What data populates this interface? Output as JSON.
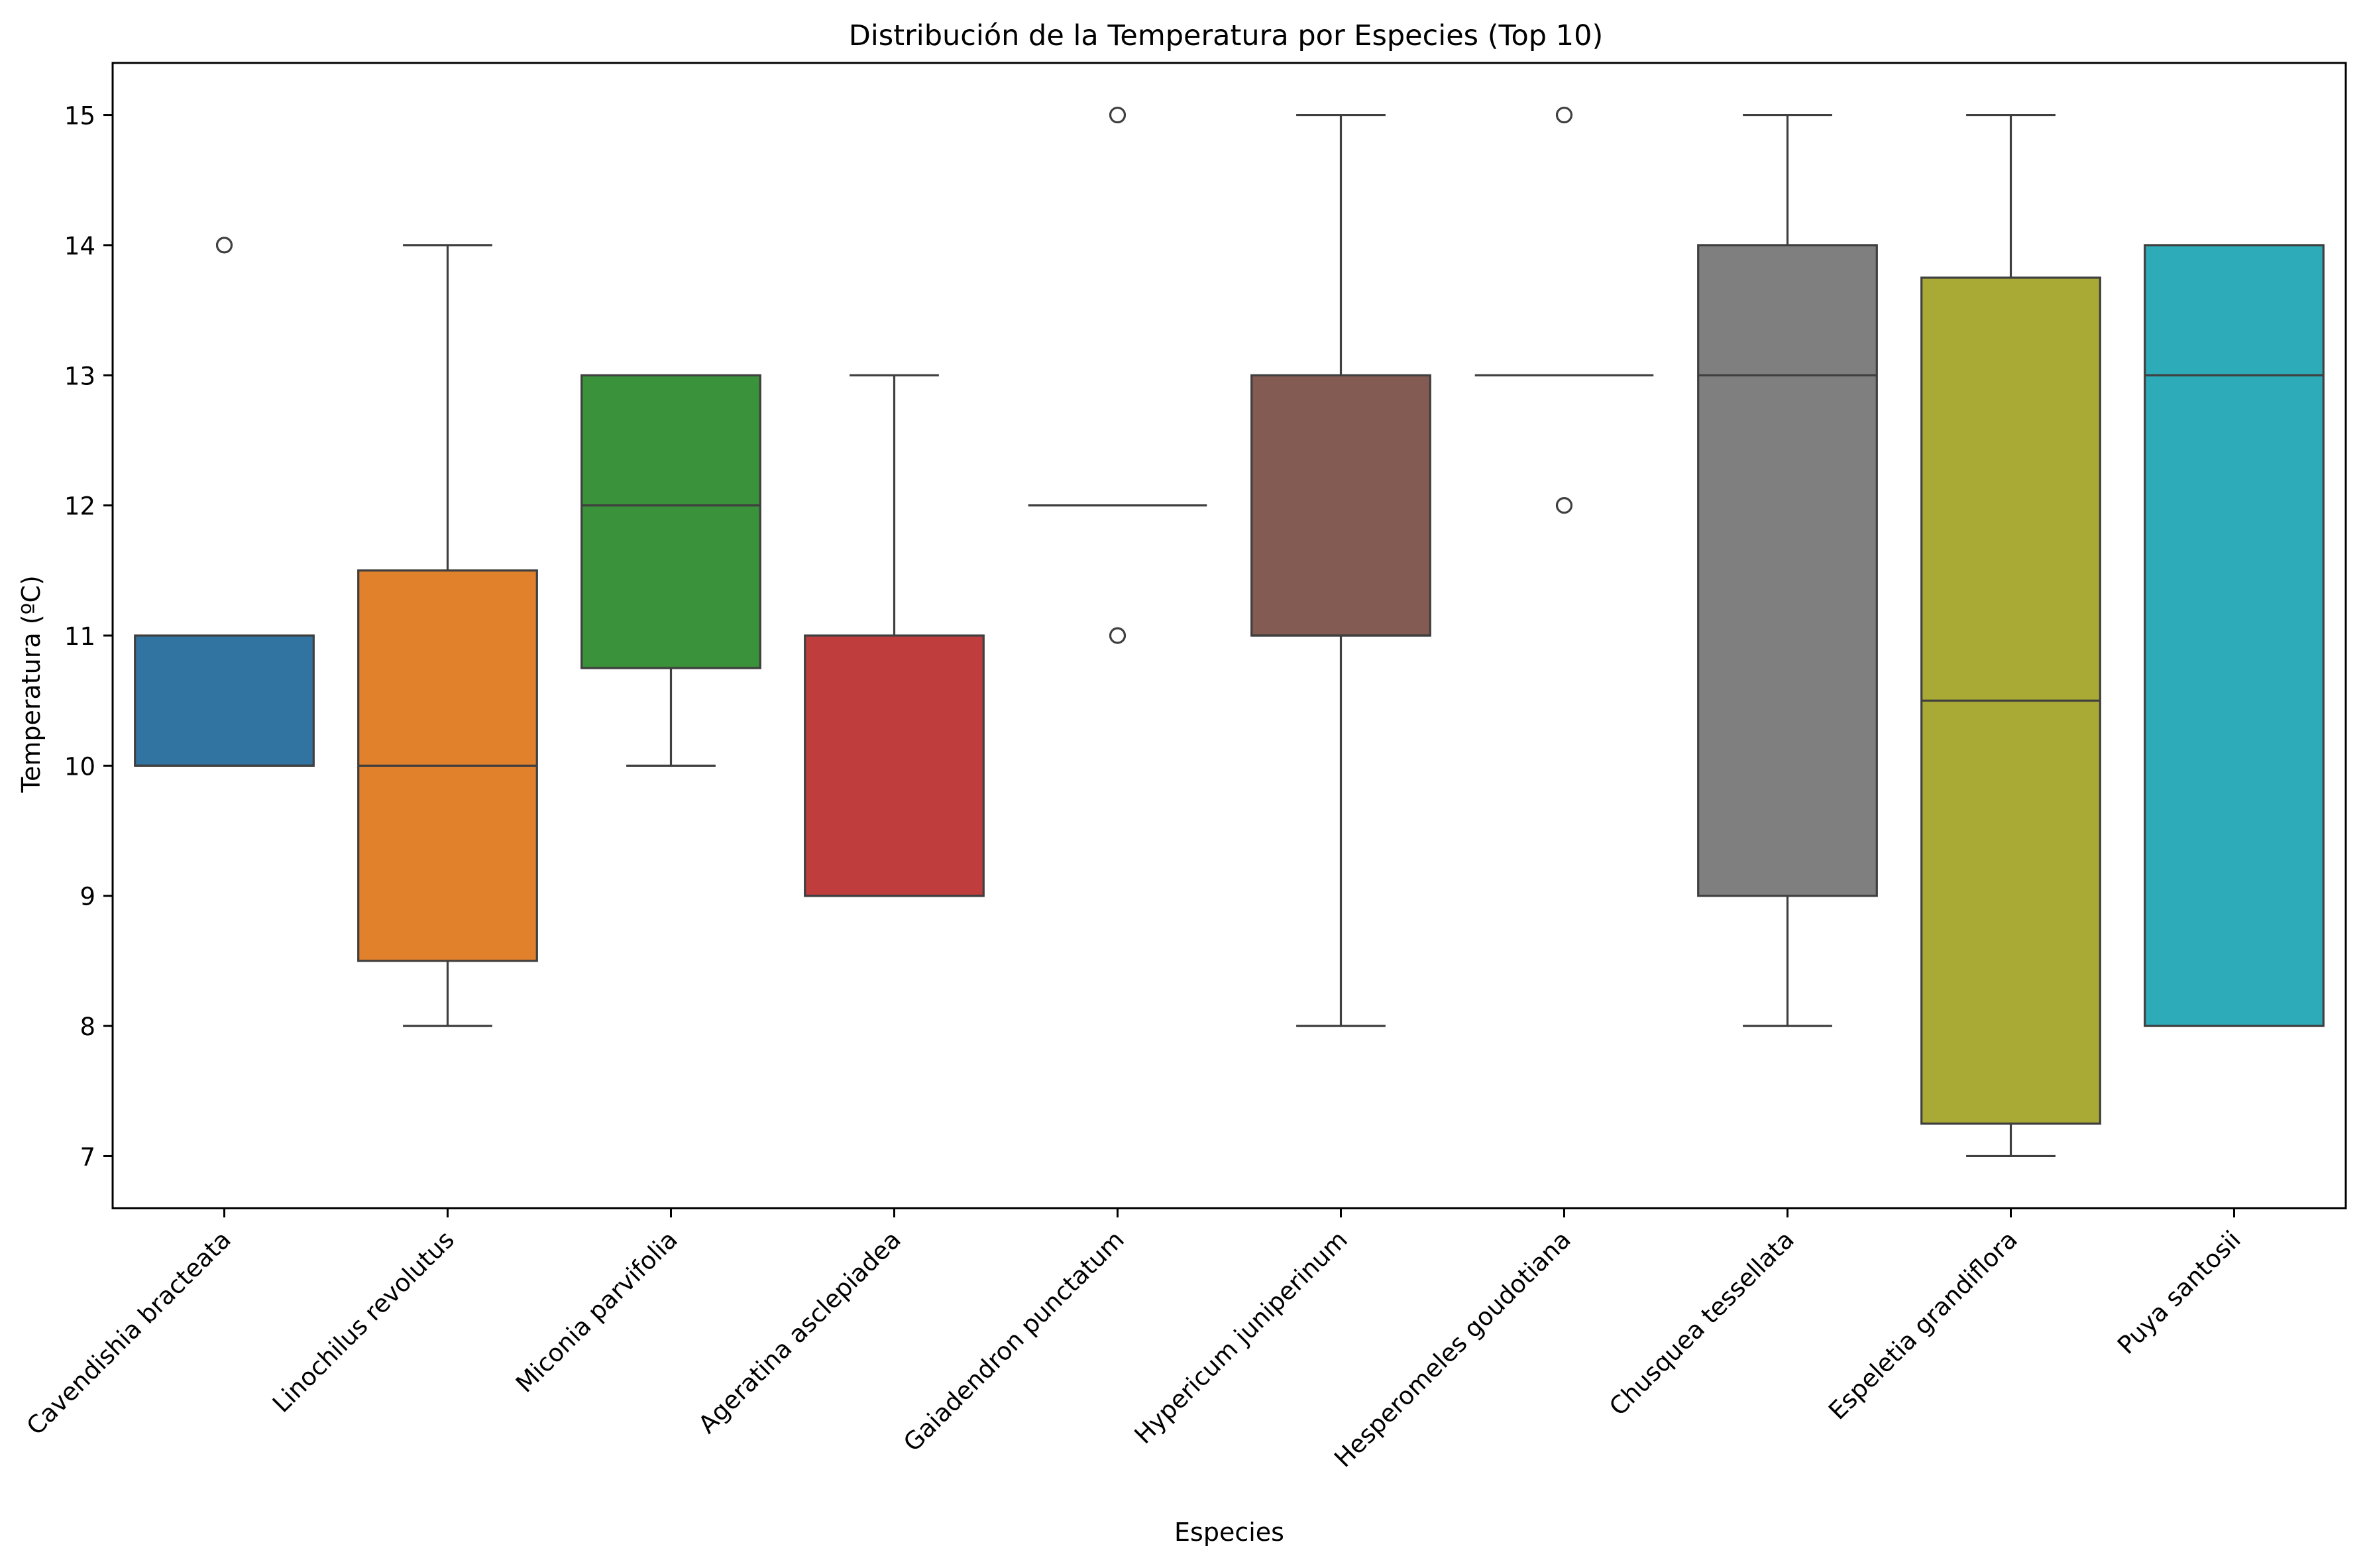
{
  "chart_data": {
    "type": "box",
    "title": "Distribución de la Temperatura por Especies (Top 10)",
    "xlabel": "Especies",
    "ylabel": "Temperatura (ºC)",
    "ylim": [
      6.6,
      15.4
    ],
    "yticks": [
      7,
      8,
      9,
      10,
      11,
      12,
      13,
      14,
      15
    ],
    "grid": false,
    "categories": [
      "Cavendishia bracteata",
      "Linochilus revolutus",
      "Miconia parvifolia",
      "Ageratina asclepiadea",
      "Gaiadendron punctatum",
      "Hypericum  juniperinum",
      "Hesperomeles  goudotiana",
      "Chusquea tessellata",
      "Espeletia grandiflora",
      "Puya santosii"
    ],
    "colors": [
      "#3274a1",
      "#e1812c",
      "#3a923a",
      "#c03d3e",
      "#9372b2",
      "#845b53",
      "#d684bd",
      "#7f7f7f",
      "#a9aa35",
      "#2eabb8"
    ],
    "boxes": [
      {
        "whisker_low": 10,
        "q1": 10,
        "median": 10,
        "q3": 11,
        "whisker_high": 11,
        "outliers": [
          14
        ]
      },
      {
        "whisker_low": 8,
        "q1": 8.5,
        "median": 10,
        "q3": 11.5,
        "whisker_high": 14,
        "outliers": []
      },
      {
        "whisker_low": 10,
        "q1": 10.75,
        "median": 12,
        "q3": 13,
        "whisker_high": 13,
        "outliers": []
      },
      {
        "whisker_low": 9,
        "q1": 9,
        "median": 9,
        "q3": 11,
        "whisker_high": 13,
        "outliers": []
      },
      {
        "whisker_low": 12,
        "q1": 12,
        "median": 12,
        "q3": 12,
        "whisker_high": 12,
        "outliers": [
          15,
          11
        ]
      },
      {
        "whisker_low": 8,
        "q1": 11,
        "median": 11,
        "q3": 13,
        "whisker_high": 15,
        "outliers": []
      },
      {
        "whisker_low": 13,
        "q1": 13,
        "median": 13,
        "q3": 13,
        "whisker_high": 13,
        "outliers": [
          15,
          12
        ]
      },
      {
        "whisker_low": 8,
        "q1": 9,
        "median": 13,
        "q3": 14,
        "whisker_high": 15,
        "outliers": []
      },
      {
        "whisker_low": 7,
        "q1": 7.25,
        "median": 10.5,
        "q3": 13.75,
        "whisker_high": 15,
        "outliers": []
      },
      {
        "whisker_low": 8,
        "q1": 8,
        "median": 13,
        "q3": 14,
        "whisker_high": 14,
        "outliers": []
      }
    ]
  }
}
